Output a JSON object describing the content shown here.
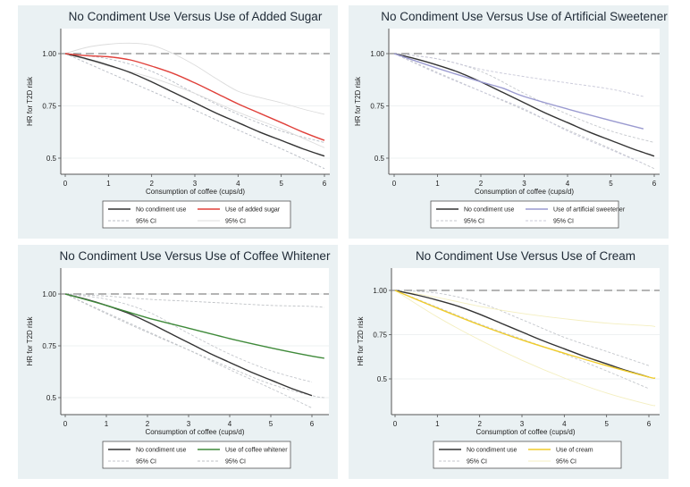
{
  "chart_data": [
    {
      "type": "line",
      "title": "No Condiment Use Versus Use of Added Sugar",
      "xlabel": "Consumption of coffee (cups/d)",
      "ylabel": "HR for T2D risk",
      "xlim": [
        0,
        6
      ],
      "ylim": [
        0.42,
        1.12
      ],
      "xticks": [
        "0",
        "1",
        "2",
        "3",
        "4",
        "5",
        "6"
      ],
      "yticks": [
        {
          "value": 1.0,
          "label": "1.00"
        },
        {
          "value": 0.75,
          "label": "0.75"
        },
        {
          "value": 0.5,
          "label": "0.5"
        }
      ],
      "reference_line": 1.0,
      "grid": true,
      "legend": {
        "position": "bottom",
        "entries": [
          "No condiment use",
          "Use of added sugar",
          "95% CI",
          "95% CI"
        ]
      },
      "series": [
        {
          "name": "No condiment use",
          "role": "main",
          "color": "#333333",
          "x": [
            0,
            0.5,
            1,
            1.5,
            2,
            2.5,
            3,
            3.5,
            4,
            4.5,
            5,
            5.5,
            6
          ],
          "y": [
            1.0,
            0.975,
            0.945,
            0.91,
            0.865,
            0.815,
            0.765,
            0.715,
            0.67,
            0.625,
            0.585,
            0.545,
            0.51
          ]
        },
        {
          "name": "No condiment use 95% CI upper",
          "role": "ci",
          "color": "#b8bcc4",
          "x": [
            0,
            1,
            2,
            3,
            4,
            5,
            6
          ],
          "y": [
            1.0,
            0.975,
            0.915,
            0.81,
            0.71,
            0.63,
            0.575
          ]
        },
        {
          "name": "No condiment use 95% CI lower",
          "role": "ci",
          "color": "#b8bcc4",
          "x": [
            0,
            1,
            2,
            3,
            4,
            5,
            6
          ],
          "y": [
            1.0,
            0.91,
            0.82,
            0.73,
            0.635,
            0.545,
            0.45
          ]
        },
        {
          "name": "Use of added sugar",
          "role": "main",
          "color": "#e0403a",
          "x": [
            0,
            0.5,
            1,
            1.5,
            2,
            2.5,
            3,
            3.5,
            4,
            4.5,
            5,
            5.5,
            6
          ],
          "y": [
            1.0,
            0.99,
            0.985,
            0.97,
            0.94,
            0.905,
            0.86,
            0.81,
            0.76,
            0.715,
            0.67,
            0.625,
            0.585
          ]
        },
        {
          "name": "Use of added sugar 95% CI upper",
          "role": "ci",
          "color": "#dcdcdc",
          "x": [
            0,
            0.5,
            1,
            1.5,
            2,
            2.5,
            3,
            3.5,
            4,
            4.5,
            5,
            5.5,
            6
          ],
          "y": [
            1.0,
            1.03,
            1.045,
            1.05,
            1.04,
            1.0,
            0.945,
            0.88,
            0.82,
            0.79,
            0.765,
            0.735,
            0.71
          ]
        },
        {
          "name": "Use of added sugar 95% CI lower",
          "role": "ci",
          "color": "#dcdcdc",
          "x": [
            0,
            1,
            2,
            3,
            4,
            5,
            6
          ],
          "y": [
            1.0,
            0.94,
            0.885,
            0.81,
            0.72,
            0.64,
            0.55
          ]
        }
      ]
    },
    {
      "type": "line",
      "title": "No Condiment Use Versus Use of Artificial Sweetener",
      "xlabel": "Consumption of coffee (cups/d)",
      "ylabel": "HR for T2D risk",
      "xlim": [
        0,
        6
      ],
      "ylim": [
        0.42,
        1.12
      ],
      "xticks": [
        "0",
        "1",
        "2",
        "3",
        "4",
        "5",
        "6"
      ],
      "yticks": [
        {
          "value": 1.0,
          "label": "1.00"
        },
        {
          "value": 0.75,
          "label": "0.75"
        },
        {
          "value": 0.5,
          "label": "0.5"
        }
      ],
      "reference_line": 1.0,
      "grid": true,
      "legend": {
        "position": "bottom",
        "entries": [
          "No condiment use",
          "Use of artificial sweetener",
          "95% CI",
          "95% CI"
        ]
      },
      "series": [
        {
          "name": "No condiment use",
          "role": "main",
          "color": "#333333",
          "x": [
            0,
            0.5,
            1,
            1.5,
            2,
            2.5,
            3,
            3.5,
            4,
            4.5,
            5,
            5.5,
            6
          ],
          "y": [
            1.0,
            0.975,
            0.945,
            0.91,
            0.865,
            0.815,
            0.765,
            0.715,
            0.67,
            0.625,
            0.585,
            0.545,
            0.51
          ]
        },
        {
          "name": "No condiment use 95% CI upper",
          "role": "ci",
          "color": "#c4c7cc",
          "x": [
            0,
            1,
            2,
            3,
            4,
            5,
            6
          ],
          "y": [
            1.0,
            0.975,
            0.915,
            0.81,
            0.71,
            0.63,
            0.575
          ]
        },
        {
          "name": "No condiment use 95% CI lower",
          "role": "ci",
          "color": "#c4c7cc",
          "x": [
            0,
            1,
            2,
            3,
            4,
            5,
            6
          ],
          "y": [
            1.0,
            0.91,
            0.82,
            0.73,
            0.635,
            0.545,
            0.45
          ]
        },
        {
          "name": "Use of artificial sweetener",
          "role": "main",
          "color": "#9a9ad0",
          "x": [
            0,
            1,
            2,
            2.5,
            3,
            4,
            5,
            5.75
          ],
          "y": [
            1.0,
            0.93,
            0.865,
            0.835,
            0.795,
            0.735,
            0.68,
            0.64
          ]
        },
        {
          "name": "Use of artificial sweetener 95% CI upper",
          "role": "ci",
          "color": "#c8c8d8",
          "x": [
            0,
            1,
            2,
            3,
            4,
            5,
            5.75
          ],
          "y": [
            1.0,
            0.975,
            0.925,
            0.89,
            0.86,
            0.83,
            0.795
          ]
        },
        {
          "name": "Use of artificial sweetener 95% CI lower",
          "role": "ci",
          "color": "#c8c8d8",
          "x": [
            0,
            1,
            2,
            3,
            4,
            5,
            5.75
          ],
          "y": [
            1.0,
            0.905,
            0.82,
            0.735,
            0.63,
            0.54,
            0.475
          ]
        }
      ]
    },
    {
      "type": "line",
      "title": "No Condiment Use Versus Use of Coffee Whitener",
      "xlabel": "Consumption of coffee (cups/d)",
      "ylabel": "HR for T2D risk",
      "xlim": [
        0,
        6
      ],
      "ylim": [
        0.42,
        1.12
      ],
      "xticks": [
        "0",
        "1",
        "2",
        "3",
        "4",
        "5",
        "6"
      ],
      "yticks": [
        {
          "value": 1.0,
          "label": "1.00"
        },
        {
          "value": 0.75,
          "label": "0.75"
        },
        {
          "value": 0.5,
          "label": "0.5"
        }
      ],
      "reference_line": 1.0,
      "grid": true,
      "legend": {
        "position": "bottom",
        "entries": [
          "No condiment use",
          "Use of coffee whitener",
          "95% CI",
          "95% CI"
        ]
      },
      "series": [
        {
          "name": "No condiment use",
          "role": "main",
          "color": "#333333",
          "x": [
            0,
            0.5,
            1,
            1.5,
            2,
            2.5,
            3,
            3.5,
            4,
            4.5,
            5,
            5.5,
            6
          ],
          "y": [
            1.0,
            0.975,
            0.945,
            0.91,
            0.865,
            0.815,
            0.765,
            0.715,
            0.67,
            0.625,
            0.585,
            0.545,
            0.51
          ]
        },
        {
          "name": "No condiment use 95% CI upper",
          "role": "ci",
          "color": "#c4c7cc",
          "x": [
            0,
            1,
            2,
            3,
            4,
            5,
            6
          ],
          "y": [
            1.0,
            0.975,
            0.915,
            0.81,
            0.71,
            0.63,
            0.575
          ]
        },
        {
          "name": "No condiment use 95% CI lower",
          "role": "ci",
          "color": "#c4c7cc",
          "x": [
            0,
            1,
            2,
            3,
            4,
            5,
            6
          ],
          "y": [
            1.0,
            0.91,
            0.82,
            0.73,
            0.635,
            0.545,
            0.45
          ]
        },
        {
          "name": "Use of coffee whitener",
          "role": "main",
          "color": "#3f8a3a",
          "x": [
            0,
            1,
            2,
            3,
            4,
            5,
            6,
            6.3
          ],
          "y": [
            1.0,
            0.945,
            0.885,
            0.835,
            0.785,
            0.74,
            0.7,
            0.69
          ]
        },
        {
          "name": "Use of coffee whitener 95% CI upper",
          "role": "ci",
          "color": "#bfc2c6",
          "x": [
            0,
            1,
            2,
            3,
            4,
            5,
            6,
            6.3
          ],
          "y": [
            1.0,
            0.99,
            0.975,
            0.965,
            0.955,
            0.945,
            0.94,
            0.935
          ]
        },
        {
          "name": "Use of coffee whitener 95% CI lower",
          "role": "ci",
          "color": "#bfc2c6",
          "x": [
            0,
            1,
            2,
            3,
            4,
            5,
            6,
            6.3
          ],
          "y": [
            1.0,
            0.905,
            0.815,
            0.73,
            0.645,
            0.565,
            0.51,
            0.5
          ]
        }
      ]
    },
    {
      "type": "line",
      "title": "No Condiment Use Versus Use of Cream",
      "xlabel": "Consumption of coffee (cups/d)",
      "ylabel": "HR for T2D risk",
      "xlim": [
        0,
        6
      ],
      "ylim": [
        0.3,
        1.12
      ],
      "xticks": [
        "0",
        "1",
        "2",
        "3",
        "4",
        "5",
        "6"
      ],
      "yticks": [
        {
          "value": 1.0,
          "label": "1.00"
        },
        {
          "value": 0.75,
          "label": "0.75"
        },
        {
          "value": 0.5,
          "label": "0.5"
        }
      ],
      "reference_line": 1.0,
      "grid": true,
      "legend": {
        "position": "bottom",
        "entries": [
          "No condiment use",
          "Use of cream",
          "95% CI",
          "95% CI"
        ]
      },
      "series": [
        {
          "name": "No condiment use",
          "role": "main",
          "color": "#333333",
          "x": [
            0,
            0.5,
            1,
            1.5,
            2,
            2.5,
            3,
            3.5,
            4,
            4.5,
            5,
            5.5,
            6
          ],
          "y": [
            1.0,
            0.975,
            0.945,
            0.91,
            0.865,
            0.815,
            0.765,
            0.715,
            0.67,
            0.625,
            0.585,
            0.545,
            0.51
          ]
        },
        {
          "name": "No condiment use 95% CI upper",
          "role": "ci",
          "color": "#c4c7cc",
          "x": [
            0,
            1,
            2,
            3,
            4,
            5,
            6
          ],
          "y": [
            1.0,
            0.985,
            0.93,
            0.835,
            0.735,
            0.655,
            0.575
          ]
        },
        {
          "name": "No condiment use 95% CI lower",
          "role": "ci",
          "color": "#c4c7cc",
          "x": [
            0,
            1,
            2,
            3,
            4,
            5,
            6
          ],
          "y": [
            1.0,
            0.905,
            0.81,
            0.725,
            0.64,
            0.545,
            0.445
          ]
        },
        {
          "name": "Use of cream",
          "role": "main",
          "color": "#f0cc2a",
          "x": [
            0,
            1,
            2,
            3,
            4,
            5,
            6,
            6.15
          ],
          "y": [
            1.0,
            0.9,
            0.805,
            0.72,
            0.645,
            0.575,
            0.51,
            0.505
          ]
        },
        {
          "name": "Use of cream 95% CI upper",
          "role": "ci",
          "color": "#f4efc0",
          "x": [
            0,
            1,
            2,
            3,
            4,
            5,
            6,
            6.15
          ],
          "y": [
            1.0,
            0.96,
            0.91,
            0.87,
            0.84,
            0.815,
            0.8,
            0.795
          ]
        },
        {
          "name": "Use of cream 95% CI lower",
          "role": "ci",
          "color": "#f4efc0",
          "x": [
            0,
            1,
            2,
            3,
            4,
            5,
            6,
            6.15
          ],
          "y": [
            1.0,
            0.85,
            0.72,
            0.605,
            0.505,
            0.42,
            0.355,
            0.35
          ]
        }
      ]
    }
  ]
}
